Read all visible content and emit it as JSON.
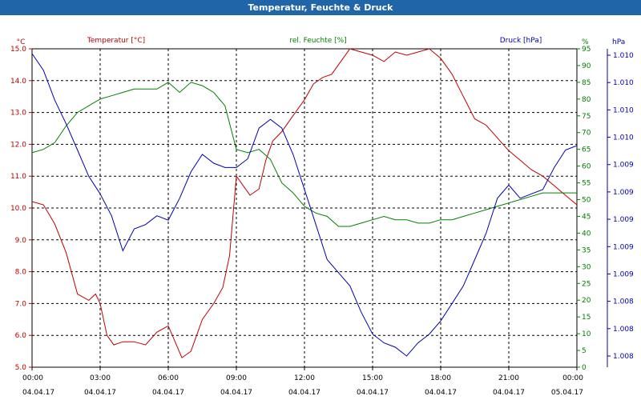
{
  "window": {
    "title": "Temperatur, Feuchte & Druck"
  },
  "colors": {
    "temperature": "#c00000",
    "humidity": "#008000",
    "pressure": "#0000b0",
    "grid": "#000000",
    "titlebar": "#1f65a8"
  },
  "chart_data": {
    "type": "line",
    "title": "Temperatur, Feuchte & Druck",
    "grid": true,
    "x_range_hours": [
      0,
      24
    ],
    "x_ticks": [
      {
        "h": 0,
        "time": "00:00",
        "date": "04.04.17"
      },
      {
        "h": 3,
        "time": "03:00",
        "date": "04.04.17"
      },
      {
        "h": 6,
        "time": "06:00",
        "date": "04.04.17"
      },
      {
        "h": 9,
        "time": "09:00",
        "date": "04.04.17"
      },
      {
        "h": 12,
        "time": "12:00",
        "date": "04.04.17"
      },
      {
        "h": 15,
        "time": "15:00",
        "date": "04.04.17"
      },
      {
        "h": 18,
        "time": "18:00",
        "date": "04.04.17"
      },
      {
        "h": 21,
        "time": "21:00",
        "date": "04.04.17"
      },
      {
        "h": 24,
        "time": "00:00",
        "date": "05.04.17"
      }
    ],
    "axes": {
      "temperature": {
        "unit": "°C",
        "ylim": [
          5.0,
          15.0
        ],
        "ticks": [
          "5.0",
          "6.0",
          "7.0",
          "8.0",
          "9.0",
          "10.0",
          "11.0",
          "12.0",
          "13.0",
          "14.0",
          "15.0"
        ]
      },
      "humidity": {
        "unit": "%",
        "ylim": [
          0,
          95
        ],
        "ticks": [
          "0",
          "5",
          "10",
          "15",
          "20",
          "25",
          "30",
          "35",
          "40",
          "45",
          "50",
          "55",
          "60",
          "65",
          "70",
          "75",
          "80",
          "85",
          "90",
          "95"
        ]
      },
      "pressure": {
        "unit": "hPa",
        "ticks": [
          "1.008",
          "1.008",
          "1.008",
          "1.009",
          "1.009",
          "1.009",
          "1.009",
          "1.009",
          "1.010",
          "1.010",
          "1.010",
          "1.010"
        ]
      }
    },
    "series": [
      {
        "name": "Temperatur [°C]",
        "axis": "temperature",
        "x": [
          0,
          0.5,
          1,
          1.5,
          2,
          2.5,
          2.8,
          3,
          3.3,
          3.6,
          4,
          4.5,
          5,
          5.5,
          6,
          6.3,
          6.6,
          7,
          7.5,
          8,
          8.4,
          8.7,
          9,
          9.3,
          9.6,
          10,
          10.3,
          10.6,
          11,
          11.5,
          12,
          12.4,
          12.8,
          13.2,
          13.6,
          14,
          14.5,
          15,
          15.5,
          16,
          16.5,
          17,
          17.5,
          18,
          18.5,
          19,
          19.5,
          20,
          20.5,
          21,
          21.5,
          22,
          22.5,
          23,
          23.5,
          24
        ],
        "values": [
          10.2,
          10.1,
          9.5,
          8.6,
          7.3,
          7.1,
          7.3,
          7.0,
          6.0,
          5.7,
          5.8,
          5.8,
          5.7,
          6.1,
          6.3,
          5.8,
          5.3,
          5.5,
          6.5,
          7.0,
          7.5,
          8.5,
          11.0,
          10.7,
          10.4,
          10.6,
          11.5,
          12.1,
          12.4,
          12.9,
          13.4,
          13.9,
          14.1,
          14.2,
          14.6,
          15.0,
          14.9,
          14.8,
          14.6,
          14.9,
          14.8,
          14.9,
          15.0,
          14.7,
          14.2,
          13.5,
          12.8,
          12.6,
          12.2,
          11.8,
          11.5,
          11.2,
          11.0,
          10.7,
          10.4,
          10.1
        ]
      },
      {
        "name": "rel. Feuchte [%]",
        "axis": "humidity",
        "x": [
          0,
          0.5,
          1,
          1.5,
          2,
          2.5,
          3,
          3.5,
          4,
          4.5,
          5,
          5.5,
          6,
          6.5,
          7,
          7.5,
          8,
          8.5,
          9,
          9.5,
          10,
          10.5,
          11,
          11.5,
          12,
          12.5,
          13,
          13.5,
          14,
          14.5,
          15,
          15.5,
          16,
          16.5,
          17,
          17.5,
          18,
          18.5,
          19,
          19.5,
          20,
          20.5,
          21,
          21.5,
          22,
          22.5,
          23,
          23.5,
          24
        ],
        "values": [
          64,
          65,
          67,
          72,
          76,
          78,
          80,
          81,
          82,
          83,
          83,
          83,
          85,
          82,
          85,
          84,
          82,
          78,
          65,
          64,
          65,
          62,
          55,
          52,
          48,
          46,
          45,
          42,
          42,
          43,
          44,
          45,
          44,
          44,
          43,
          43,
          44,
          44,
          45,
          46,
          47,
          48,
          49,
          50,
          51,
          52,
          52,
          52,
          52
        ]
      },
      {
        "name": "Druck [hPa]",
        "axis": "pressure",
        "x": [
          0,
          0.5,
          1,
          1.5,
          2,
          2.5,
          3,
          3.5,
          4,
          4.5,
          5,
          5.5,
          6,
          6.5,
          7,
          7.5,
          8,
          8.5,
          9,
          9.5,
          10,
          10.5,
          11,
          11.5,
          12,
          12.5,
          13,
          13.5,
          14,
          14.5,
          15,
          15.5,
          16,
          16.5,
          17,
          17.5,
          18,
          18.5,
          19,
          19.5,
          20,
          20.5,
          21,
          21.5,
          22,
          22.5,
          23,
          23.5,
          24
        ],
        "values": [
          1.01115,
          1.01096,
          1.01062,
          1.01035,
          1.01005,
          1.00975,
          1.00955,
          1.0093,
          1.0089,
          1.00915,
          1.0092,
          1.0093,
          1.00925,
          1.0095,
          1.0098,
          1.01,
          1.0099,
          1.00985,
          1.00985,
          1.00995,
          1.0103,
          1.0104,
          1.0103,
          1.01,
          1.0096,
          1.0092,
          1.0088,
          1.00865,
          1.0085,
          1.0082,
          1.00795,
          1.00785,
          1.0078,
          1.0077,
          1.00785,
          1.00795,
          1.0081,
          1.0083,
          1.0085,
          1.0088,
          1.0091,
          1.0095,
          1.00965,
          1.0095,
          1.00955,
          1.0096,
          1.00985,
          1.01005,
          1.0101
        ]
      }
    ]
  }
}
